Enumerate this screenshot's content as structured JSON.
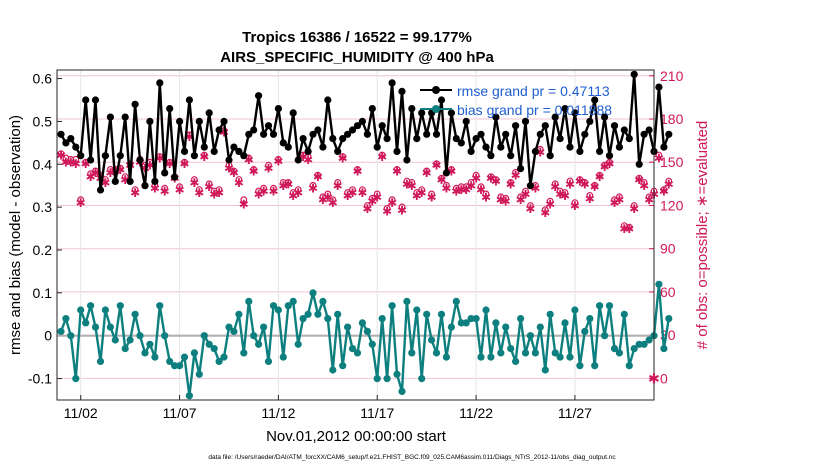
{
  "chart_data": {
    "type": "line",
    "title_line1": "Tropics 16386 / 16522 = 99.177%",
    "title_line2": "AIRS_SPECIFIC_HUMIDITY @ 400 hPa",
    "xlabel": "Nov.01,2012 00:00:00 start",
    "ylabel_left": "rmse and bias (model - observation)",
    "ylabel_right": "# of obs: o=possible; ∗=evaluated",
    "footer": "data file: /Users/raeder/DAI/ATM_forcXX/CAM6_setup/f.e21.FHIST_BGC.f09_025.CAM6assim.011/Diags_NTrS_2012-11/obs_diag_output.nc",
    "x_tick_labels": [
      "11/02",
      "11/07",
      "11/12",
      "11/17",
      "11/22",
      "11/27"
    ],
    "x_tick_values": [
      2,
      7,
      12,
      17,
      22,
      27
    ],
    "xlim": [
      0.8,
      31.0
    ],
    "ylim_left": [
      -0.15,
      0.62
    ],
    "ylim_right": [
      -15,
      214
    ],
    "y_left_ticks": [
      -0.1,
      0,
      0.1,
      0.2,
      0.3,
      0.4,
      0.5,
      0.6
    ],
    "y_left_tick_labels": [
      "-0.1",
      "0",
      "0.1",
      "0.2",
      "0.3",
      "0.4",
      "0.5",
      "0.6"
    ],
    "y_right_ticks": [
      0,
      30,
      60,
      90,
      120,
      150,
      180,
      210
    ],
    "y_right_tick_labels": [
      "0",
      "30",
      "60",
      "90",
      "120",
      "150",
      "180",
      "210"
    ],
    "legend": [
      {
        "label": "rmse grand pr = 0.47113",
        "color": "#000000"
      },
      {
        "label": "bias grand pr = 0.011888",
        "color": "#0e7f7f"
      }
    ],
    "x_start": 1.0,
    "x_step": 0.25,
    "series": [
      {
        "name": "rmse",
        "axis": "left",
        "color": "#000000",
        "values": [
          0.47,
          0.45,
          0.46,
          0.44,
          0.42,
          0.55,
          0.41,
          0.55,
          0.34,
          0.42,
          0.51,
          0.36,
          0.42,
          0.51,
          0.36,
          0.54,
          0.41,
          0.35,
          0.5,
          0.36,
          0.59,
          0.38,
          0.53,
          0.37,
          0.5,
          0.43,
          0.55,
          0.42,
          0.5,
          0.44,
          0.52,
          0.43,
          0.48,
          0.5,
          0.41,
          0.44,
          0.43,
          0.42,
          0.47,
          0.48,
          0.56,
          0.47,
          0.49,
          0.47,
          0.53,
          0.45,
          0.44,
          0.52,
          0.41,
          0.46,
          0.43,
          0.47,
          0.48,
          0.44,
          0.55,
          0.46,
          0.43,
          0.46,
          0.47,
          0.48,
          0.49,
          0.5,
          0.47,
          0.53,
          0.44,
          0.49,
          0.46,
          0.59,
          0.43,
          0.57,
          0.41,
          0.53,
          0.46,
          0.52,
          0.47,
          0.52,
          0.47,
          0.55,
          0.38,
          0.52,
          0.46,
          0.45,
          0.5,
          0.43,
          0.46,
          0.47,
          0.44,
          0.42,
          0.51,
          0.44,
          0.47,
          0.42,
          0.49,
          0.39,
          0.5,
          0.35,
          0.43,
          0.47,
          0.49,
          0.42,
          0.51,
          0.46,
          0.53,
          0.44,
          0.52,
          0.43,
          0.47,
          0.5,
          0.55,
          0.43,
          0.51,
          0.42,
          0.49,
          0.44,
          0.48,
          0.46,
          0.61,
          0.4,
          0.47,
          0.48,
          0.43,
          0.58,
          0.44,
          0.47
        ]
      },
      {
        "name": "bias",
        "axis": "left",
        "color": "#0e7f7f",
        "values": [
          0.01,
          0.04,
          0.0,
          -0.1,
          0.06,
          0.03,
          0.07,
          0.02,
          -0.06,
          0.06,
          0.02,
          -0.01,
          0.07,
          -0.03,
          -0.01,
          0.05,
          0.0,
          -0.04,
          -0.02,
          -0.05,
          0.07,
          0.0,
          -0.06,
          -0.07,
          -0.07,
          -0.05,
          -0.14,
          -0.04,
          -0.09,
          0.0,
          -0.02,
          -0.03,
          -0.06,
          -0.05,
          0.02,
          0.01,
          0.05,
          -0.04,
          0.08,
          0.0,
          -0.02,
          0.02,
          -0.06,
          0.07,
          0.06,
          -0.05,
          0.07,
          0.08,
          -0.02,
          0.04,
          0.05,
          0.1,
          0.05,
          0.08,
          0.04,
          -0.08,
          0.05,
          -0.07,
          0.02,
          -0.03,
          -0.04,
          0.03,
          0.01,
          -0.02,
          -0.1,
          0.04,
          -0.1,
          0.07,
          -0.09,
          -0.13,
          0.08,
          -0.04,
          0.06,
          -0.1,
          0.05,
          -0.01,
          -0.04,
          0.05,
          -0.05,
          0.02,
          0.08,
          0.03,
          0.03,
          0.04,
          0.04,
          -0.05,
          0.06,
          -0.05,
          0.03,
          -0.04,
          0.02,
          -0.03,
          -0.06,
          0.04,
          -0.04,
          0.0,
          -0.04,
          0.02,
          -0.08,
          0.05,
          -0.04,
          -0.05,
          0.03,
          -0.05,
          0.06,
          -0.07,
          0.01,
          0.04,
          -0.07,
          0.07,
          0.0,
          0.07,
          -0.03,
          -0.04,
          0.05,
          -0.07,
          -0.03,
          -0.02,
          -0.02,
          -0.01,
          0.0,
          0.12,
          -0.03,
          0.04
        ]
      },
      {
        "name": "possible",
        "axis": "right",
        "color": "#d0195a",
        "marker": "o",
        "values": [
          156,
          153,
          152,
          152,
          124,
          150,
          142,
          144,
          141,
          138,
          145,
          145,
          146,
          140,
          149,
          131,
          152,
          148,
          150,
          134,
          154,
          132,
          150,
          140,
          133,
          150,
          169,
          138,
          131,
          155,
          135,
          130,
          131,
          172,
          148,
          144,
          138,
          124,
          153,
          145,
          130,
          132,
          148,
          132,
          152,
          136,
          136,
          129,
          131,
          155,
          154,
          134,
          141,
          126,
          128,
          124,
          136,
          154,
          129,
          131,
          145,
          131,
          120,
          125,
          128,
          155,
          118,
          124,
          145,
          119,
          137,
          136,
          129,
          131,
          144,
          128,
          149,
          139,
          134,
          145,
          132,
          133,
          133,
          136,
          141,
          133,
          128,
          140,
          138,
          126,
          125,
          136,
          143,
          126,
          130,
          120,
          134,
          159,
          117,
          123,
          135,
          130,
          129,
          137,
          122,
          138,
          136,
          127,
          134,
          141,
          148,
          150,
          124,
          126,
          106,
          105,
          120,
          139,
          136,
          126,
          130,
          155,
          131,
          137
        ]
      },
      {
        "name": "evaluated",
        "axis": "right",
        "color": "#d0195a",
        "marker": "*",
        "values": [
          155,
          150,
          150,
          149,
          122,
          149,
          140,
          143,
          139,
          136,
          143,
          144,
          145,
          138,
          148,
          129,
          150,
          146,
          148,
          132,
          153,
          130,
          149,
          139,
          131,
          149,
          168,
          136,
          129,
          154,
          133,
          128,
          129,
          171,
          146,
          143,
          136,
          121,
          152,
          144,
          128,
          130,
          146,
          130,
          151,
          134,
          135,
          127,
          129,
          154,
          152,
          132,
          140,
          124,
          126,
          122,
          134,
          153,
          127,
          129,
          144,
          129,
          118,
          123,
          126,
          154,
          116,
          122,
          144,
          117,
          135,
          134,
          127,
          129,
          143,
          126,
          148,
          138,
          132,
          144,
          130,
          131,
          131,
          134,
          139,
          131,
          126,
          139,
          137,
          124,
          123,
          135,
          141,
          124,
          128,
          118,
          132,
          157,
          115,
          121,
          133,
          128,
          127,
          135,
          120,
          137,
          135,
          125,
          133,
          140,
          147,
          149,
          122,
          124,
          104,
          104,
          118,
          138,
          134,
          124,
          128,
          153,
          130,
          135
        ]
      }
    ],
    "right_edge_marker": {
      "value": 0,
      "color": "#d0195a"
    }
  }
}
